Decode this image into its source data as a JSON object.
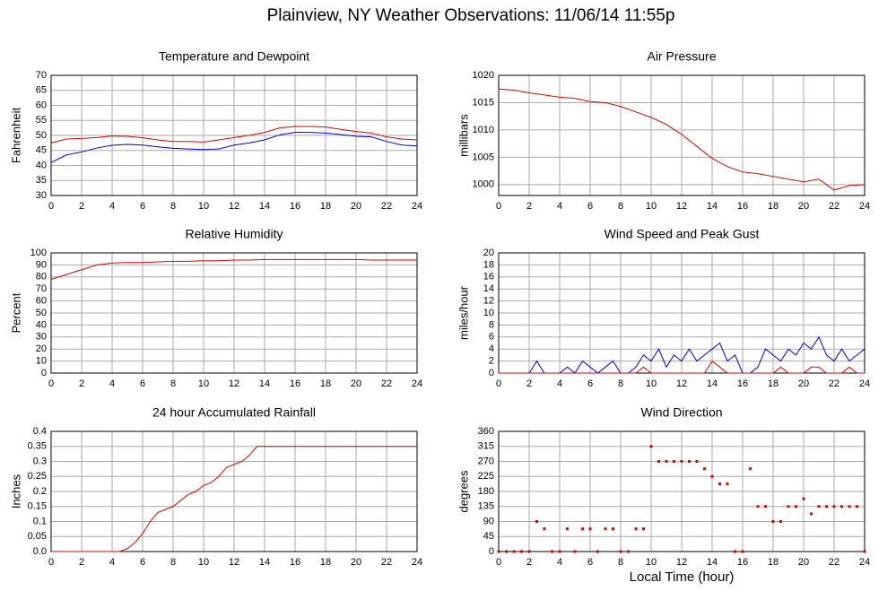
{
  "title": "Plainview, NY Weather Observations: 11/06/14 11:55p",
  "xlabel": "Local Time (hour)",
  "chart_data": [
    {
      "type": "line",
      "title": "Temperature and Dewpoint",
      "ylabel": "Fahrenheit",
      "x": [
        0,
        1,
        2,
        3,
        4,
        5,
        6,
        7,
        8,
        9,
        10,
        11,
        12,
        13,
        14,
        15,
        16,
        17,
        18,
        19,
        20,
        21,
        22,
        23,
        24
      ],
      "series": [
        {
          "name": "Temperature",
          "color": "#e00000",
          "values": [
            47.5,
            48.8,
            49,
            49.3,
            49.8,
            49.7,
            49.2,
            48.5,
            48,
            48,
            47.8,
            48.5,
            49.3,
            50,
            51,
            52.5,
            53,
            53,
            52.8,
            52,
            51.3,
            50.8,
            49.5,
            48.8,
            48.5
          ]
        },
        {
          "name": "Dewpoint",
          "color": "#0000e0",
          "values": [
            41,
            43.5,
            44.5,
            45.8,
            46.7,
            47,
            46.8,
            46.2,
            45.7,
            45.5,
            45.3,
            45.5,
            46.8,
            47.5,
            48.5,
            50.2,
            51,
            51,
            50.8,
            50.3,
            49.7,
            49.5,
            48,
            46.8,
            46.5
          ]
        }
      ],
      "xlim": [
        0,
        24
      ],
      "xticks": [
        0,
        2,
        4,
        6,
        8,
        10,
        12,
        14,
        16,
        18,
        20,
        22,
        24
      ],
      "ylim": [
        30,
        70
      ],
      "yticks": [
        30,
        35,
        40,
        45,
        50,
        55,
        60,
        65,
        70
      ],
      "grid": true
    },
    {
      "type": "line",
      "title": "Air Pressure",
      "ylabel": "millibars",
      "x": [
        0,
        1,
        2,
        3,
        4,
        5,
        6,
        7,
        8,
        9,
        10,
        11,
        12,
        13,
        14,
        15,
        16,
        17,
        18,
        19,
        20,
        21,
        22,
        23,
        24
      ],
      "series": [
        {
          "name": "Pressure",
          "color": "#e00000",
          "values": [
            1017.5,
            1017.3,
            1016.8,
            1016.4,
            1016,
            1015.8,
            1015.2,
            1015,
            1014.3,
            1013.3,
            1012.3,
            1011,
            1009.2,
            1007,
            1004.8,
            1003.3,
            1002.3,
            1002,
            1001.5,
            1001,
            1000.5,
            1001,
            999,
            999.8,
            1000
          ]
        }
      ],
      "xlim": [
        0,
        24
      ],
      "xticks": [
        0,
        2,
        4,
        6,
        8,
        10,
        12,
        14,
        16,
        18,
        20,
        22,
        24
      ],
      "ylim": [
        998,
        1020
      ],
      "yticks": [
        1000,
        1005,
        1010,
        1015,
        1020
      ],
      "grid": true
    },
    {
      "type": "line",
      "title": "Relative Humidity",
      "ylabel": "Percent",
      "x": [
        0,
        1,
        2,
        3,
        4,
        5,
        6,
        7,
        8,
        9,
        10,
        11,
        12,
        13,
        14,
        15,
        16,
        17,
        18,
        19,
        20,
        21,
        22,
        23,
        24
      ],
      "series": [
        {
          "name": "Humidity",
          "color": "#e00000",
          "values": [
            78,
            82,
            86,
            90,
            91.5,
            92,
            92,
            92.5,
            93,
            93,
            93.5,
            93.5,
            94,
            94,
            94.5,
            94.5,
            94.5,
            94.5,
            94.5,
            94.5,
            94.5,
            94,
            94,
            94,
            94
          ]
        }
      ],
      "xlim": [
        0,
        24
      ],
      "xticks": [
        0,
        2,
        4,
        6,
        8,
        10,
        12,
        14,
        16,
        18,
        20,
        22,
        24
      ],
      "ylim": [
        0,
        100
      ],
      "yticks": [
        0,
        10,
        20,
        30,
        40,
        50,
        60,
        70,
        80,
        90,
        100
      ],
      "grid": true
    },
    {
      "type": "line",
      "title": "Wind Speed and Peak Gust",
      "ylabel": "miles/hour",
      "x": [
        0,
        0.5,
        1,
        1.5,
        2,
        2.5,
        3,
        3.5,
        4,
        4.5,
        5,
        5.5,
        6,
        6.5,
        7,
        7.5,
        8,
        8.5,
        9,
        9.5,
        10,
        10.5,
        11,
        11.5,
        12,
        12.5,
        13,
        13.5,
        14,
        14.5,
        15,
        15.5,
        16,
        16.5,
        17,
        17.5,
        18,
        18.5,
        19,
        19.5,
        20,
        20.5,
        21,
        21.5,
        22,
        22.5,
        23,
        23.5,
        24
      ],
      "series": [
        {
          "name": "Wind Speed",
          "color": "#0000e0",
          "values": [
            0,
            0,
            0,
            0,
            0,
            2,
            0,
            0,
            0,
            1,
            0,
            2,
            1,
            0,
            1,
            2,
            0,
            0,
            1,
            3,
            2,
            4,
            1,
            3,
            2,
            4,
            2,
            3,
            4,
            5,
            2,
            3,
            0,
            0,
            1,
            4,
            3,
            2,
            4,
            3,
            5,
            4,
            6,
            3,
            2,
            4,
            2,
            3,
            4
          ]
        },
        {
          "name": "Peak Gust",
          "color": "#e00000",
          "values": [
            0,
            0,
            0,
            0,
            0,
            0,
            0,
            0,
            0,
            0,
            0,
            0,
            0,
            0,
            0,
            0,
            0,
            0,
            0,
            1,
            0,
            0,
            0,
            0,
            0,
            0,
            0,
            0,
            2,
            1,
            0,
            0,
            0,
            0,
            0,
            0,
            0,
            1,
            0,
            0,
            0,
            1,
            1,
            0,
            0,
            0,
            1,
            0,
            0
          ]
        }
      ],
      "xlim": [
        0,
        24
      ],
      "xticks": [
        0,
        2,
        4,
        6,
        8,
        10,
        12,
        14,
        16,
        18,
        20,
        22,
        24
      ],
      "ylim": [
        0,
        20
      ],
      "yticks": [
        0,
        2,
        4,
        6,
        8,
        10,
        12,
        14,
        16,
        18,
        20
      ],
      "grid": true
    },
    {
      "type": "line",
      "title": "24 hour Accumulated Rainfall",
      "ylabel": "Inches",
      "x": [
        0,
        0.5,
        1,
        1.5,
        2,
        2.5,
        3,
        3.5,
        4,
        4.5,
        5,
        5.5,
        6,
        6.5,
        7,
        7.5,
        8,
        8.5,
        9,
        9.5,
        10,
        10.5,
        11,
        11.5,
        12,
        12.5,
        13,
        13.5,
        14,
        14.5,
        15,
        15.5,
        16,
        16.5,
        17,
        17.5,
        18,
        18.5,
        19,
        19.5,
        20,
        20.5,
        21,
        21.5,
        22,
        22.5,
        23,
        23.5,
        24
      ],
      "series": [
        {
          "name": "Rainfall",
          "color": "#e00000",
          "values": [
            0,
            0,
            0,
            0,
            0,
            0,
            0,
            0,
            0,
            0,
            0.01,
            0.03,
            0.06,
            0.1,
            0.13,
            0.14,
            0.15,
            0.17,
            0.19,
            0.2,
            0.22,
            0.23,
            0.25,
            0.28,
            0.29,
            0.3,
            0.32,
            0.35,
            0.35,
            0.35,
            0.35,
            0.35,
            0.35,
            0.35,
            0.35,
            0.35,
            0.35,
            0.35,
            0.35,
            0.35,
            0.35,
            0.35,
            0.35,
            0.35,
            0.35,
            0.35,
            0.35,
            0.35,
            0.35
          ]
        }
      ],
      "xlim": [
        0,
        24
      ],
      "xticks": [
        0,
        2,
        4,
        6,
        8,
        10,
        12,
        14,
        16,
        18,
        20,
        22,
        24
      ],
      "ylim": [
        0,
        0.4
      ],
      "yticks": [
        {
          "value": 0,
          "label": "0.0"
        },
        0.05,
        0.1,
        0.15,
        0.2,
        0.25,
        0.3,
        0.35,
        0.4
      ],
      "grid": true
    },
    {
      "type": "scatter",
      "title": "Wind Direction",
      "ylabel": "degrees",
      "x": [
        0,
        0.5,
        1,
        1.5,
        2,
        2.5,
        3,
        3.5,
        4,
        4.5,
        5,
        5.5,
        6,
        6.5,
        7,
        7.5,
        8,
        8.5,
        9,
        9.5,
        10,
        10.5,
        11,
        11.5,
        12,
        12.5,
        13,
        13.5,
        14,
        14.5,
        15,
        15.5,
        16,
        16.5,
        17,
        17.5,
        18,
        18.5,
        19,
        19.5,
        20,
        20.5,
        21,
        21.5,
        22,
        22.5,
        23,
        23.5,
        24
      ],
      "series": [
        {
          "name": "Direction",
          "color": "#e00000",
          "values": [
            0,
            0,
            0,
            0,
            0,
            90,
            68,
            0,
            0,
            68,
            0,
            68,
            68,
            0,
            68,
            68,
            0,
            0,
            68,
            68,
            315,
            270,
            270,
            270,
            270,
            270,
            270,
            248,
            225,
            203,
            203,
            0,
            0,
            248,
            135,
            135,
            90,
            90,
            135,
            135,
            158,
            113,
            135,
            135,
            135,
            135,
            135,
            135,
            0
          ]
        }
      ],
      "xlim": [
        0,
        24
      ],
      "xticks": [
        0,
        2,
        4,
        6,
        8,
        10,
        12,
        14,
        16,
        18,
        20,
        22,
        24
      ],
      "ylim": [
        0,
        360
      ],
      "yticks": [
        0,
        45,
        90,
        135,
        180,
        225,
        270,
        315,
        360
      ],
      "grid": true
    }
  ]
}
